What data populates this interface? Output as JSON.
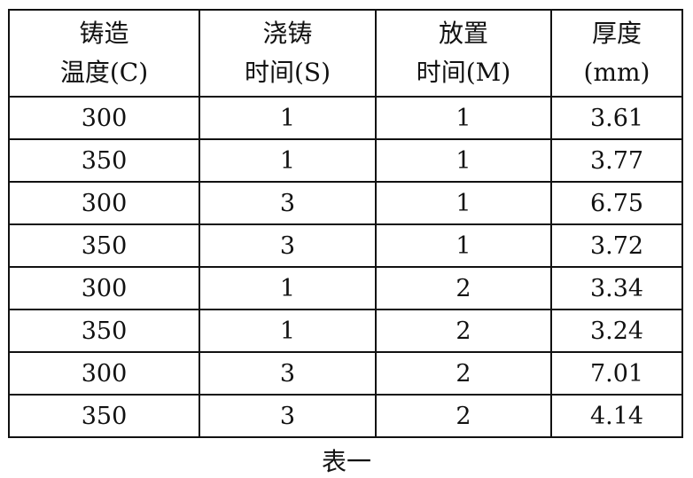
{
  "table": {
    "headers": [
      [
        "铸造",
        "温度(C)"
      ],
      [
        "浇铸",
        "时间(S)"
      ],
      [
        "放置",
        "时间(M)"
      ],
      [
        "厚度",
        "(mm)"
      ]
    ],
    "rows": [
      [
        "300",
        "1",
        "1",
        "3.61"
      ],
      [
        "350",
        "1",
        "1",
        "3.77"
      ],
      [
        "300",
        "3",
        "1",
        "6.75"
      ],
      [
        "350",
        "3",
        "1",
        "3.72"
      ],
      [
        "300",
        "1",
        "2",
        "3.34"
      ],
      [
        "350",
        "1",
        "2",
        "3.24"
      ],
      [
        "300",
        "3",
        "2",
        "7.01"
      ],
      [
        "350",
        "3",
        "2",
        "4.14"
      ]
    ]
  },
  "caption": "表一"
}
